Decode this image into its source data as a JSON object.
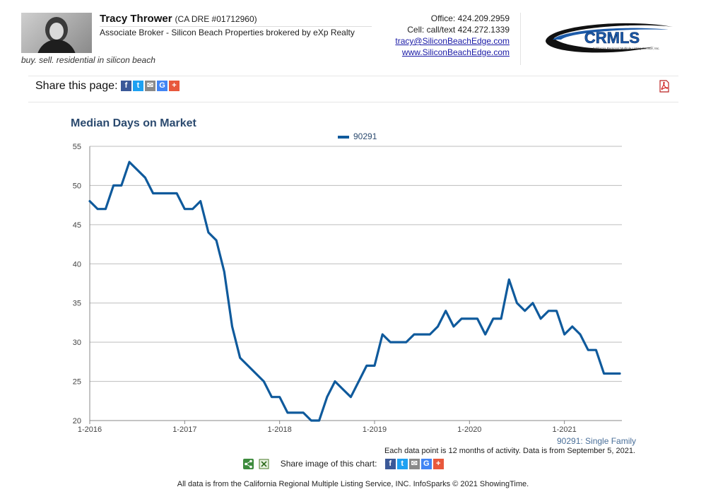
{
  "header": {
    "agent_name": "Tracy Thrower",
    "agent_dre": "(CA DRE #01712960)",
    "agent_title": "Associate Broker - Silicon Beach Properties brokered by eXp Realty",
    "tagline": "buy. sell. residential in silicon beach",
    "office": "Office: 424.209.2959",
    "cell": "Cell: call/text 424.272.1339",
    "email": "tracy@SiliconBeachEdge.com",
    "website": "www.SiliconBeachEdge.com",
    "logo_text": "CRMLS",
    "logo_subtext": "California Regional Multiple Listing Service, Inc."
  },
  "share": {
    "label": "Share this page:",
    "icons": [
      "facebook-icon",
      "twitter-icon",
      "email-icon",
      "google-icon",
      "plus-icon"
    ],
    "pdf_icon": "pdf-icon"
  },
  "chart_data": {
    "type": "line",
    "title": "Median Days on Market",
    "xlabel": "",
    "ylabel": "",
    "ylim": [
      20,
      55
    ],
    "yticks": [
      20,
      25,
      30,
      35,
      40,
      45,
      50,
      55
    ],
    "xticks": [
      "1-2016",
      "1-2017",
      "1-2018",
      "1-2019",
      "1-2020",
      "1-2021"
    ],
    "x_start": "1-2016",
    "x_step": "1 month",
    "grid": true,
    "legend_position": "top-center",
    "series": [
      {
        "name": "90291",
        "color": "#0f5a9c",
        "values": [
          48,
          47,
          47,
          50,
          50,
          53,
          52,
          51,
          49,
          49,
          49,
          49,
          47,
          47,
          48,
          44,
          43,
          39,
          32,
          28,
          27,
          26,
          25,
          23,
          23,
          21,
          21,
          21,
          20,
          20,
          23,
          25,
          24,
          23,
          25,
          27,
          27,
          31,
          30,
          30,
          30,
          31,
          31,
          31,
          32,
          34,
          32,
          33,
          33,
          33,
          31,
          33,
          33,
          38,
          35,
          34,
          35,
          33,
          34,
          34,
          31,
          32,
          31,
          29,
          29,
          26,
          26,
          26
        ]
      }
    ]
  },
  "series_note": "90291: Single Family",
  "data_note": "Each data point is 12 months of activity. Data is from September 5, 2021.",
  "share_image_label": "Share image of this chart:",
  "footer": "All data is from the California Regional Multiple Listing Service, INC. InfoSparks © 2021 ShowingTime."
}
